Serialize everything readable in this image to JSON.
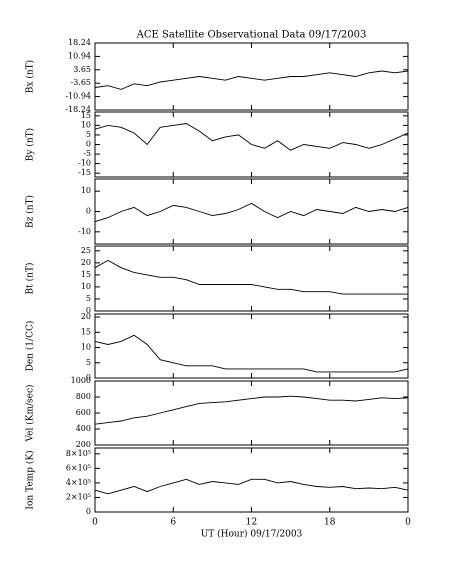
{
  "chart_data": [
    {
      "type": "line",
      "title": "ACE Satellite Observational Data   09/17/2003",
      "ylabel": "Bx (nT)",
      "color": "#000000",
      "x": [
        0,
        1,
        2,
        3,
        4,
        5,
        6,
        7,
        8,
        9,
        10,
        11,
        12,
        13,
        14,
        15,
        16,
        17,
        18,
        19,
        20,
        21,
        22,
        23,
        24
      ],
      "values": [
        -6,
        -5,
        -7,
        -4,
        -5,
        -3,
        -2,
        -1,
        0,
        -1,
        -2,
        0,
        -1,
        -2,
        -1,
        0,
        0,
        1,
        2,
        1,
        0,
        2,
        3,
        2,
        3
      ],
      "ylim": [
        -18.24,
        18.24
      ],
      "yticks": [
        -18.24,
        -10.94,
        -3.65,
        3.65,
        10.94,
        18.24
      ]
    },
    {
      "type": "line",
      "ylabel": "By (nT)",
      "color": "#000000",
      "x": [
        0,
        1,
        2,
        3,
        4,
        5,
        6,
        7,
        8,
        9,
        10,
        11,
        12,
        13,
        14,
        15,
        16,
        17,
        18,
        19,
        20,
        21,
        22,
        23,
        24
      ],
      "values": [
        8,
        10,
        9,
        6,
        0,
        9,
        10,
        11,
        7,
        2,
        4,
        5,
        0,
        -2,
        2,
        -3,
        0,
        -1,
        -2,
        1,
        0,
        -2,
        0,
        3,
        6
      ],
      "ylim": [
        -17,
        17
      ],
      "yticks": [
        -15,
        -10,
        -5,
        0,
        5,
        10,
        15
      ]
    },
    {
      "type": "line",
      "ylabel": "Bz (nT)",
      "color": "#000000",
      "x": [
        0,
        1,
        2,
        3,
        4,
        5,
        6,
        7,
        8,
        9,
        10,
        11,
        12,
        13,
        14,
        15,
        16,
        17,
        18,
        19,
        20,
        21,
        22,
        23,
        24
      ],
      "values": [
        -5,
        -3,
        0,
        2,
        -2,
        0,
        3,
        2,
        0,
        -2,
        -1,
        1,
        4,
        0,
        -3,
        0,
        -2,
        1,
        0,
        -1,
        2,
        0,
        1,
        0,
        2
      ],
      "ylim": [
        -16,
        16
      ],
      "yticks": [
        -10,
        0,
        10
      ]
    },
    {
      "type": "line",
      "ylabel": "Bt (nT)",
      "color": "#000000",
      "x": [
        0,
        1,
        2,
        3,
        4,
        5,
        6,
        7,
        8,
        9,
        10,
        11,
        12,
        13,
        14,
        15,
        16,
        17,
        18,
        19,
        20,
        21,
        22,
        23,
        24
      ],
      "values": [
        18,
        21,
        18,
        16,
        15,
        14,
        14,
        13,
        11,
        11,
        11,
        11,
        11,
        10,
        9,
        9,
        8,
        8,
        8,
        7,
        7,
        7,
        7,
        7,
        7
      ],
      "ylim": [
        0,
        27
      ],
      "yticks": [
        0,
        5,
        10,
        15,
        20,
        25
      ]
    },
    {
      "type": "line",
      "ylabel": "Den (1/CC)",
      "color": "#000000",
      "x": [
        0,
        1,
        2,
        3,
        4,
        5,
        6,
        7,
        8,
        9,
        10,
        11,
        12,
        13,
        14,
        15,
        16,
        17,
        18,
        19,
        20,
        21,
        22,
        23,
        24
      ],
      "values": [
        12,
        11,
        12,
        14,
        11,
        6,
        5,
        4,
        4,
        4,
        3,
        3,
        3,
        3,
        3,
        3,
        3,
        2,
        2,
        2,
        2,
        2,
        2,
        2,
        3
      ],
      "ylim": [
        0,
        21
      ],
      "yticks": [
        0,
        5,
        10,
        15,
        20
      ]
    },
    {
      "type": "line",
      "ylabel": "Vel (Km/sec)",
      "color": "#000000",
      "x": [
        0,
        1,
        2,
        3,
        4,
        5,
        6,
        7,
        8,
        9,
        10,
        11,
        12,
        13,
        14,
        15,
        16,
        17,
        18,
        19,
        20,
        21,
        22,
        23,
        24
      ],
      "values": [
        460,
        480,
        500,
        540,
        560,
        600,
        640,
        680,
        720,
        730,
        740,
        760,
        780,
        800,
        800,
        810,
        800,
        780,
        760,
        760,
        750,
        770,
        790,
        780,
        790
      ],
      "ylim": [
        200,
        1000
      ],
      "yticks": [
        200,
        400,
        600,
        800,
        1000
      ]
    },
    {
      "type": "line",
      "ylabel": "Ion Temp (K)",
      "xlabel": "UT (Hour)   09/17/2003",
      "color": "#000000",
      "x": [
        0,
        1,
        2,
        3,
        4,
        5,
        6,
        7,
        8,
        9,
        10,
        11,
        12,
        13,
        14,
        15,
        16,
        17,
        18,
        19,
        20,
        21,
        22,
        23,
        24
      ],
      "values": [
        300000,
        250000,
        300000,
        350000,
        280000,
        350000,
        400000,
        450000,
        380000,
        420000,
        400000,
        380000,
        450000,
        450000,
        400000,
        420000,
        380000,
        350000,
        340000,
        350000,
        320000,
        330000,
        320000,
        340000,
        300000
      ],
      "ylim": [
        0,
        880000
      ],
      "yticks": [
        0,
        {
          "value": 200000,
          "label": "2×10⁵"
        },
        {
          "value": 400000,
          "label": "4×10⁵"
        },
        {
          "value": 600000,
          "label": "6×10⁵"
        },
        {
          "value": 800000,
          "label": "8×10⁵"
        }
      ],
      "xlim": [
        0,
        24
      ],
      "xticks": [
        {
          "value": 0,
          "label": "0"
        },
        6,
        12,
        18,
        {
          "value": 24,
          "label": "0"
        }
      ]
    }
  ]
}
